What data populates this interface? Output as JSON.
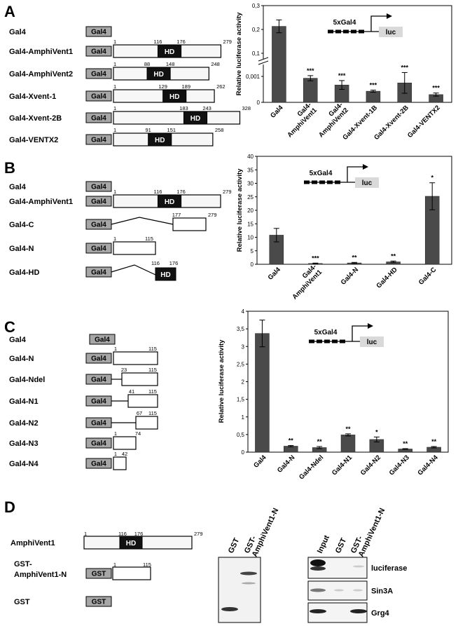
{
  "panels": {
    "A": {
      "letter": "A",
      "constructs": [
        {
          "name": "Gal4",
          "tag": "Gal4",
          "start": null,
          "end": null,
          "hd": null
        },
        {
          "name": "Gal4-AmphiVent1",
          "tag": "Gal4",
          "start": 1,
          "end": 279,
          "hd": [
            116,
            176
          ],
          "hd_label": "HD"
        },
        {
          "name": "Gal4-AmphiVent2",
          "tag": "Gal4",
          "start": 1,
          "end": 248,
          "hd": [
            88,
            148
          ],
          "hd_label": "HD"
        },
        {
          "name": "Gal4-Xvent-1",
          "tag": "Gal4",
          "start": 1,
          "end": 262,
          "hd": [
            129,
            189
          ],
          "hd_label": "HD"
        },
        {
          "name": "Gal4-Xvent-2B",
          "tag": "Gal4",
          "start": 1,
          "end": 328,
          "hd": [
            183,
            243
          ],
          "hd_label": "HD"
        },
        {
          "name": "Gal4-VENTX2",
          "tag": "Gal4",
          "start": 1,
          "end": 258,
          "hd": [
            91,
            151
          ],
          "hd_label": "HD"
        }
      ]
    },
    "B": {
      "letter": "B",
      "constructs": [
        {
          "name": "Gal4",
          "tag": "Gal4"
        },
        {
          "name": "Gal4-AmphiVent1",
          "tag": "Gal4",
          "start": "1",
          "end": "279",
          "hd": [
            "116",
            "176"
          ],
          "hd_label": "HD"
        },
        {
          "name": "Gal4-C",
          "tag": "Gal4",
          "start": "177",
          "end": "279"
        },
        {
          "name": "Gal4-N",
          "tag": "Gal4",
          "start": "1",
          "end": "115"
        },
        {
          "name": "Gal4-HD",
          "tag": "Gal4",
          "hd": [
            "116",
            "176"
          ],
          "hd_label": "HD"
        }
      ]
    },
    "C": {
      "letter": "C",
      "constructs": [
        {
          "name": "Gal4",
          "tag": "Gal4"
        },
        {
          "name": "Gal4-N",
          "tag": "Gal4",
          "start": "1",
          "end": "115"
        },
        {
          "name": "Gal4-Ndel",
          "tag": "Gal4",
          "start": "23",
          "end": "115"
        },
        {
          "name": "Gal4-N1",
          "tag": "Gal4",
          "start": "41",
          "end": "115"
        },
        {
          "name": "Gal4-N2",
          "tag": "Gal4",
          "start": "67",
          "end": "115"
        },
        {
          "name": "Gal4-N3",
          "tag": "Gal4",
          "start": "1",
          "end": "74"
        },
        {
          "name": "Gal4-N4",
          "tag": "Gal4",
          "start": "1",
          "end": "42"
        }
      ]
    },
    "D": {
      "letter": "D",
      "constructs": [
        {
          "name": "AmphiVent1",
          "start": "1",
          "end": "279",
          "hd": [
            "116",
            "176"
          ],
          "hd_label": "HD"
        },
        {
          "name_lines": [
            "GST-",
            "AmphiVent1-N"
          ],
          "tag": "GST",
          "start": "1",
          "end": "115"
        },
        {
          "name": "GST",
          "tag": "GST"
        }
      ],
      "gel1_lanes": [
        "GST",
        "GST-",
        "AmphiVent1-N"
      ],
      "gel2_lanes": [
        "Input",
        "GST",
        "GST-",
        "AmphiVent1-N"
      ],
      "blots": [
        "luciferase",
        "Sin3A",
        "Grg4"
      ]
    }
  },
  "reporter": {
    "label": "5xGal4",
    "gene": "luc"
  },
  "chart_data": [
    {
      "type": "bar",
      "ylabel": "Relative luciferase activity",
      "axis_break": true,
      "yticks_upper": [
        "0,1",
        "0,2",
        "0,3"
      ],
      "yticks_lower": [
        "0",
        "0,001"
      ],
      "categories": [
        "Gal4",
        "Gal4-AmphiVent1",
        "Gal4-AmphiVent2",
        "Gal4-Xvent-1B",
        "Gal4-Xvent-2B",
        "Gal4-VENTX2"
      ],
      "category_labels": [
        [
          "Gal4"
        ],
        [
          "Gal4-",
          "AmphiVent1"
        ],
        [
          "Gal4-",
          "AmphiVent2"
        ],
        [
          "Gal4-Xvent-1B"
        ],
        [
          "Gal4-Xvent-2B"
        ],
        [
          "Gal4-VENTX2"
        ]
      ],
      "values": [
        0.213,
        0.00093,
        0.00067,
        0.00043,
        0.00075,
        0.0003
      ],
      "errors": [
        0.027,
        0.0001,
        0.00017,
        4e-05,
        0.0004,
        6e-05
      ],
      "significance": [
        "",
        "***",
        "***",
        "***",
        "***",
        "***"
      ],
      "ylim_upper": [
        0,
        0.3
      ],
      "ylim_lower": [
        0,
        0.002
      ],
      "color": "#4a4a4a"
    },
    {
      "type": "bar",
      "ylabel": "Relative luciferase activity",
      "categories": [
        "Gal4",
        "Gal4-AmphiVent1",
        "Gal4-N",
        "Gal4-HD",
        "Gal4-C"
      ],
      "category_labels": [
        [
          "Gal4"
        ],
        [
          "Gal4-",
          "AmphiVent1"
        ],
        [
          "Gal4-N"
        ],
        [
          "Gal4-HD"
        ],
        [
          "Gal4-C"
        ]
      ],
      "values": [
        10.8,
        0.3,
        0.5,
        0.9,
        25.2
      ],
      "errors": [
        2.5,
        0.15,
        0.2,
        0.3,
        5.0
      ],
      "significance": [
        "",
        "***",
        "**",
        "**",
        "*"
      ],
      "ylim": [
        0,
        40
      ],
      "yticks": [
        "0",
        "5",
        "10",
        "15",
        "20",
        "25",
        "30",
        "35",
        "40"
      ],
      "color": "#4a4a4a"
    },
    {
      "type": "bar",
      "ylabel": "Relative luciferase activity",
      "categories": [
        "Gal4",
        "Gal4-N",
        "Gal4-Ndel",
        "Gal4-N1",
        "Gal4-N2",
        "Gal4-N3",
        "Gal4-N4"
      ],
      "category_labels": [
        [
          "Gal4"
        ],
        [
          "Gal4-N"
        ],
        [
          "Gal4-Ndel"
        ],
        [
          "Gal4-N1"
        ],
        [
          "Gal4-N2"
        ],
        [
          "Gal4-N3"
        ],
        [
          "Gal4-N4"
        ]
      ],
      "values": [
        3.37,
        0.17,
        0.13,
        0.49,
        0.36,
        0.09,
        0.14
      ],
      "errors": [
        0.38,
        0.02,
        0.03,
        0.03,
        0.07,
        0.01,
        0.02
      ],
      "significance": [
        "",
        "**",
        "**",
        "**",
        "*",
        "**",
        "**"
      ],
      "ylim": [
        0,
        4
      ],
      "yticks": [
        "0",
        "0,5",
        "1",
        "1,5",
        "2",
        "2,5",
        "3",
        "3,5",
        "4"
      ],
      "color": "#4a4a4a"
    }
  ]
}
